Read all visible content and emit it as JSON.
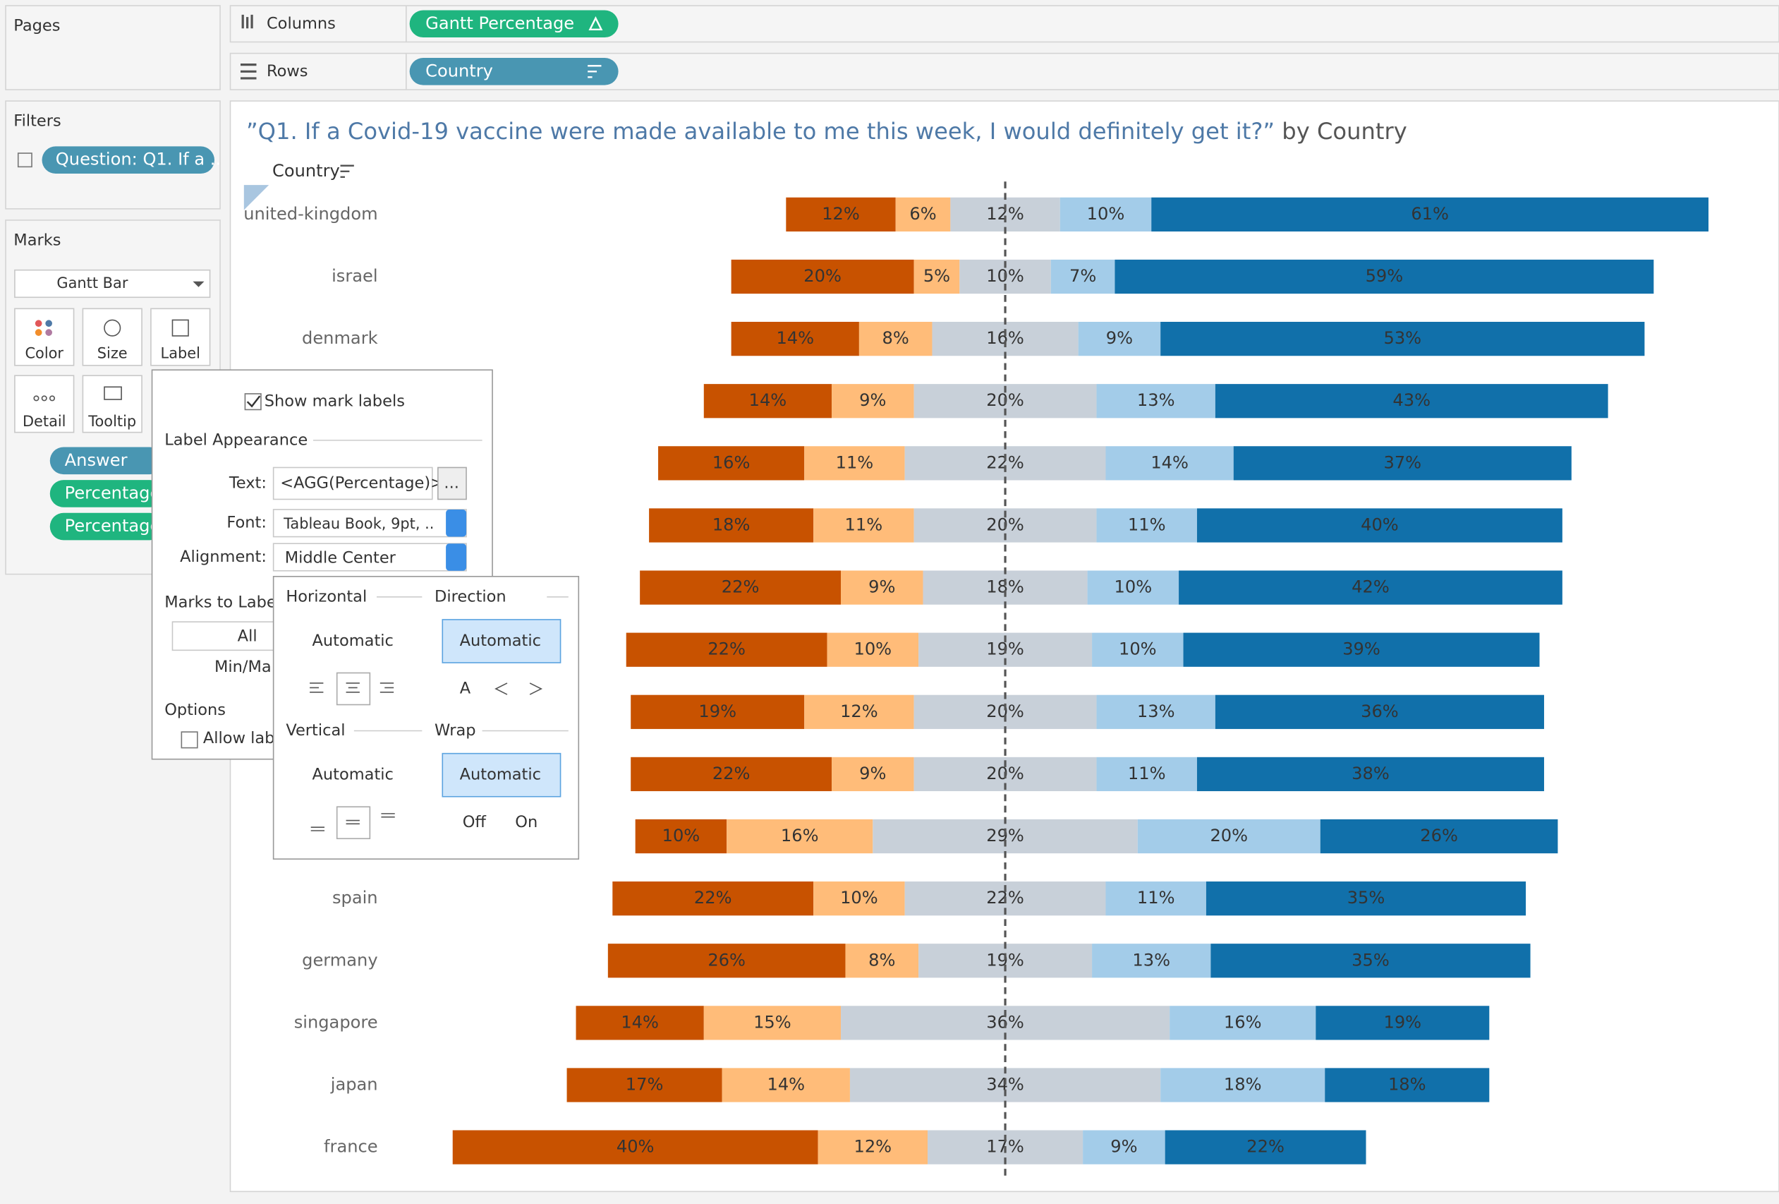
{
  "ui": {
    "pages": "Pages",
    "columns": {
      "label": "Columns",
      "pill": "Gantt Percentage"
    },
    "rows": {
      "label": "Rows",
      "pill": "Country"
    },
    "filters": {
      "title": "Filters",
      "pills": [
        "Question: Q1. If a .."
      ]
    },
    "marks": {
      "title": "Marks",
      "mark_type": "Gantt Bar",
      "buttons": [
        "Color",
        "Size",
        "Label",
        "Detail",
        "Tooltip"
      ],
      "pills": [
        "Answer",
        "Percentage",
        "Percentage"
      ]
    },
    "label_dialog": {
      "show_labels": "Show mark labels",
      "appearance": "Label Appearance",
      "text_label": "Text:",
      "text_value": "<AGG(Percentage)>",
      "more": "...",
      "font_label": "Font:",
      "font_value": "Tableau Book, 9pt, ..",
      "alignment_label": "Alignment:",
      "alignment_value": "Middle Center",
      "marks_to_label": "Marks to Label",
      "all": "All",
      "min_max": "Min/Ma",
      "options": "Options",
      "allow": "Allow lab"
    },
    "alignment_popup": {
      "horizontal": "Horizontal",
      "direction": "Direction",
      "h_auto": "Automatic",
      "d_auto": "Automatic",
      "direction_icon": "A",
      "vertical": "Vertical",
      "wrap": "Wrap",
      "v_auto": "Automatic",
      "w_auto": "Automatic",
      "off": "Off",
      "on": "On"
    }
  },
  "chart_data": {
    "type": "diverging_bar",
    "title": "”Q1. If a Covid-19 vaccine were made available to me this week, I would definitely get it?”",
    "title_suffix": " by Country",
    "y_label": "Country",
    "categories": [
      "united-kingdom",
      "israel",
      "denmark",
      null,
      null,
      null,
      null,
      null,
      null,
      null,
      null,
      "spain",
      "germany",
      "singapore",
      "japan",
      "france"
    ],
    "series": [
      {
        "color": "#c85200",
        "label_color": "#ffffff",
        "values": [
          12,
          20,
          14,
          14,
          16,
          18,
          22,
          22,
          19,
          22,
          10,
          22,
          26,
          14,
          17,
          40
        ],
        "value_labels": [
          "12%",
          "20%",
          "14%",
          "14%",
          "16%",
          "18%",
          "22%",
          "22%",
          "19%",
          "22%",
          "10%",
          "22%",
          "26%",
          "14%",
          "17%",
          "40%"
        ]
      },
      {
        "color": "#ffbc79",
        "label_color": "#333333",
        "values": [
          6,
          5,
          8,
          9,
          11,
          11,
          9,
          10,
          12,
          9,
          16,
          10,
          8,
          15,
          14,
          12
        ],
        "value_labels": [
          "6%",
          "5%",
          "8%",
          "9%",
          "11%",
          "11%",
          "9%",
          "10%",
          "12%",
          "9%",
          "16%",
          "10%",
          "8%",
          "15%",
          "14%",
          "12%"
        ]
      },
      {
        "color": "#c8d0d9",
        "label_color": "#333333",
        "values": [
          12,
          10,
          16,
          20,
          22,
          20,
          18,
          19,
          20,
          20,
          29,
          22,
          19,
          36,
          34,
          17
        ],
        "value_labels": [
          "12%",
          "10%",
          "16%",
          "20%",
          "22%",
          "20%",
          "18%",
          "19%",
          "20%",
          "20%",
          "29%",
          "22%",
          "19%",
          "36%",
          "34%",
          "17%"
        ]
      },
      {
        "color": "#a3cce9",
        "label_color": "#333333",
        "values": [
          10,
          7,
          9,
          13,
          14,
          11,
          10,
          10,
          13,
          11,
          20,
          11,
          13,
          16,
          18,
          9
        ],
        "value_labels": [
          "10%",
          "7%",
          "9%",
          "13%",
          "14%",
          "11%",
          "10%",
          "10%",
          "13%",
          "11%",
          "20%",
          "11%",
          "13%",
          "16%",
          "18%",
          "9%"
        ]
      },
      {
        "color": "#1170aa",
        "label_color": "#ffffff",
        "values": [
          61,
          59,
          53,
          43,
          37,
          40,
          42,
          39,
          36,
          38,
          26,
          35,
          35,
          19,
          18,
          22
        ],
        "value_labels": [
          "61%",
          "59%",
          "53%",
          "43%",
          "37%",
          "40%",
          "42%",
          "39%",
          "36%",
          "38%",
          "26%",
          "35%",
          "35%",
          "19%",
          "18%",
          "22%"
        ]
      }
    ]
  }
}
